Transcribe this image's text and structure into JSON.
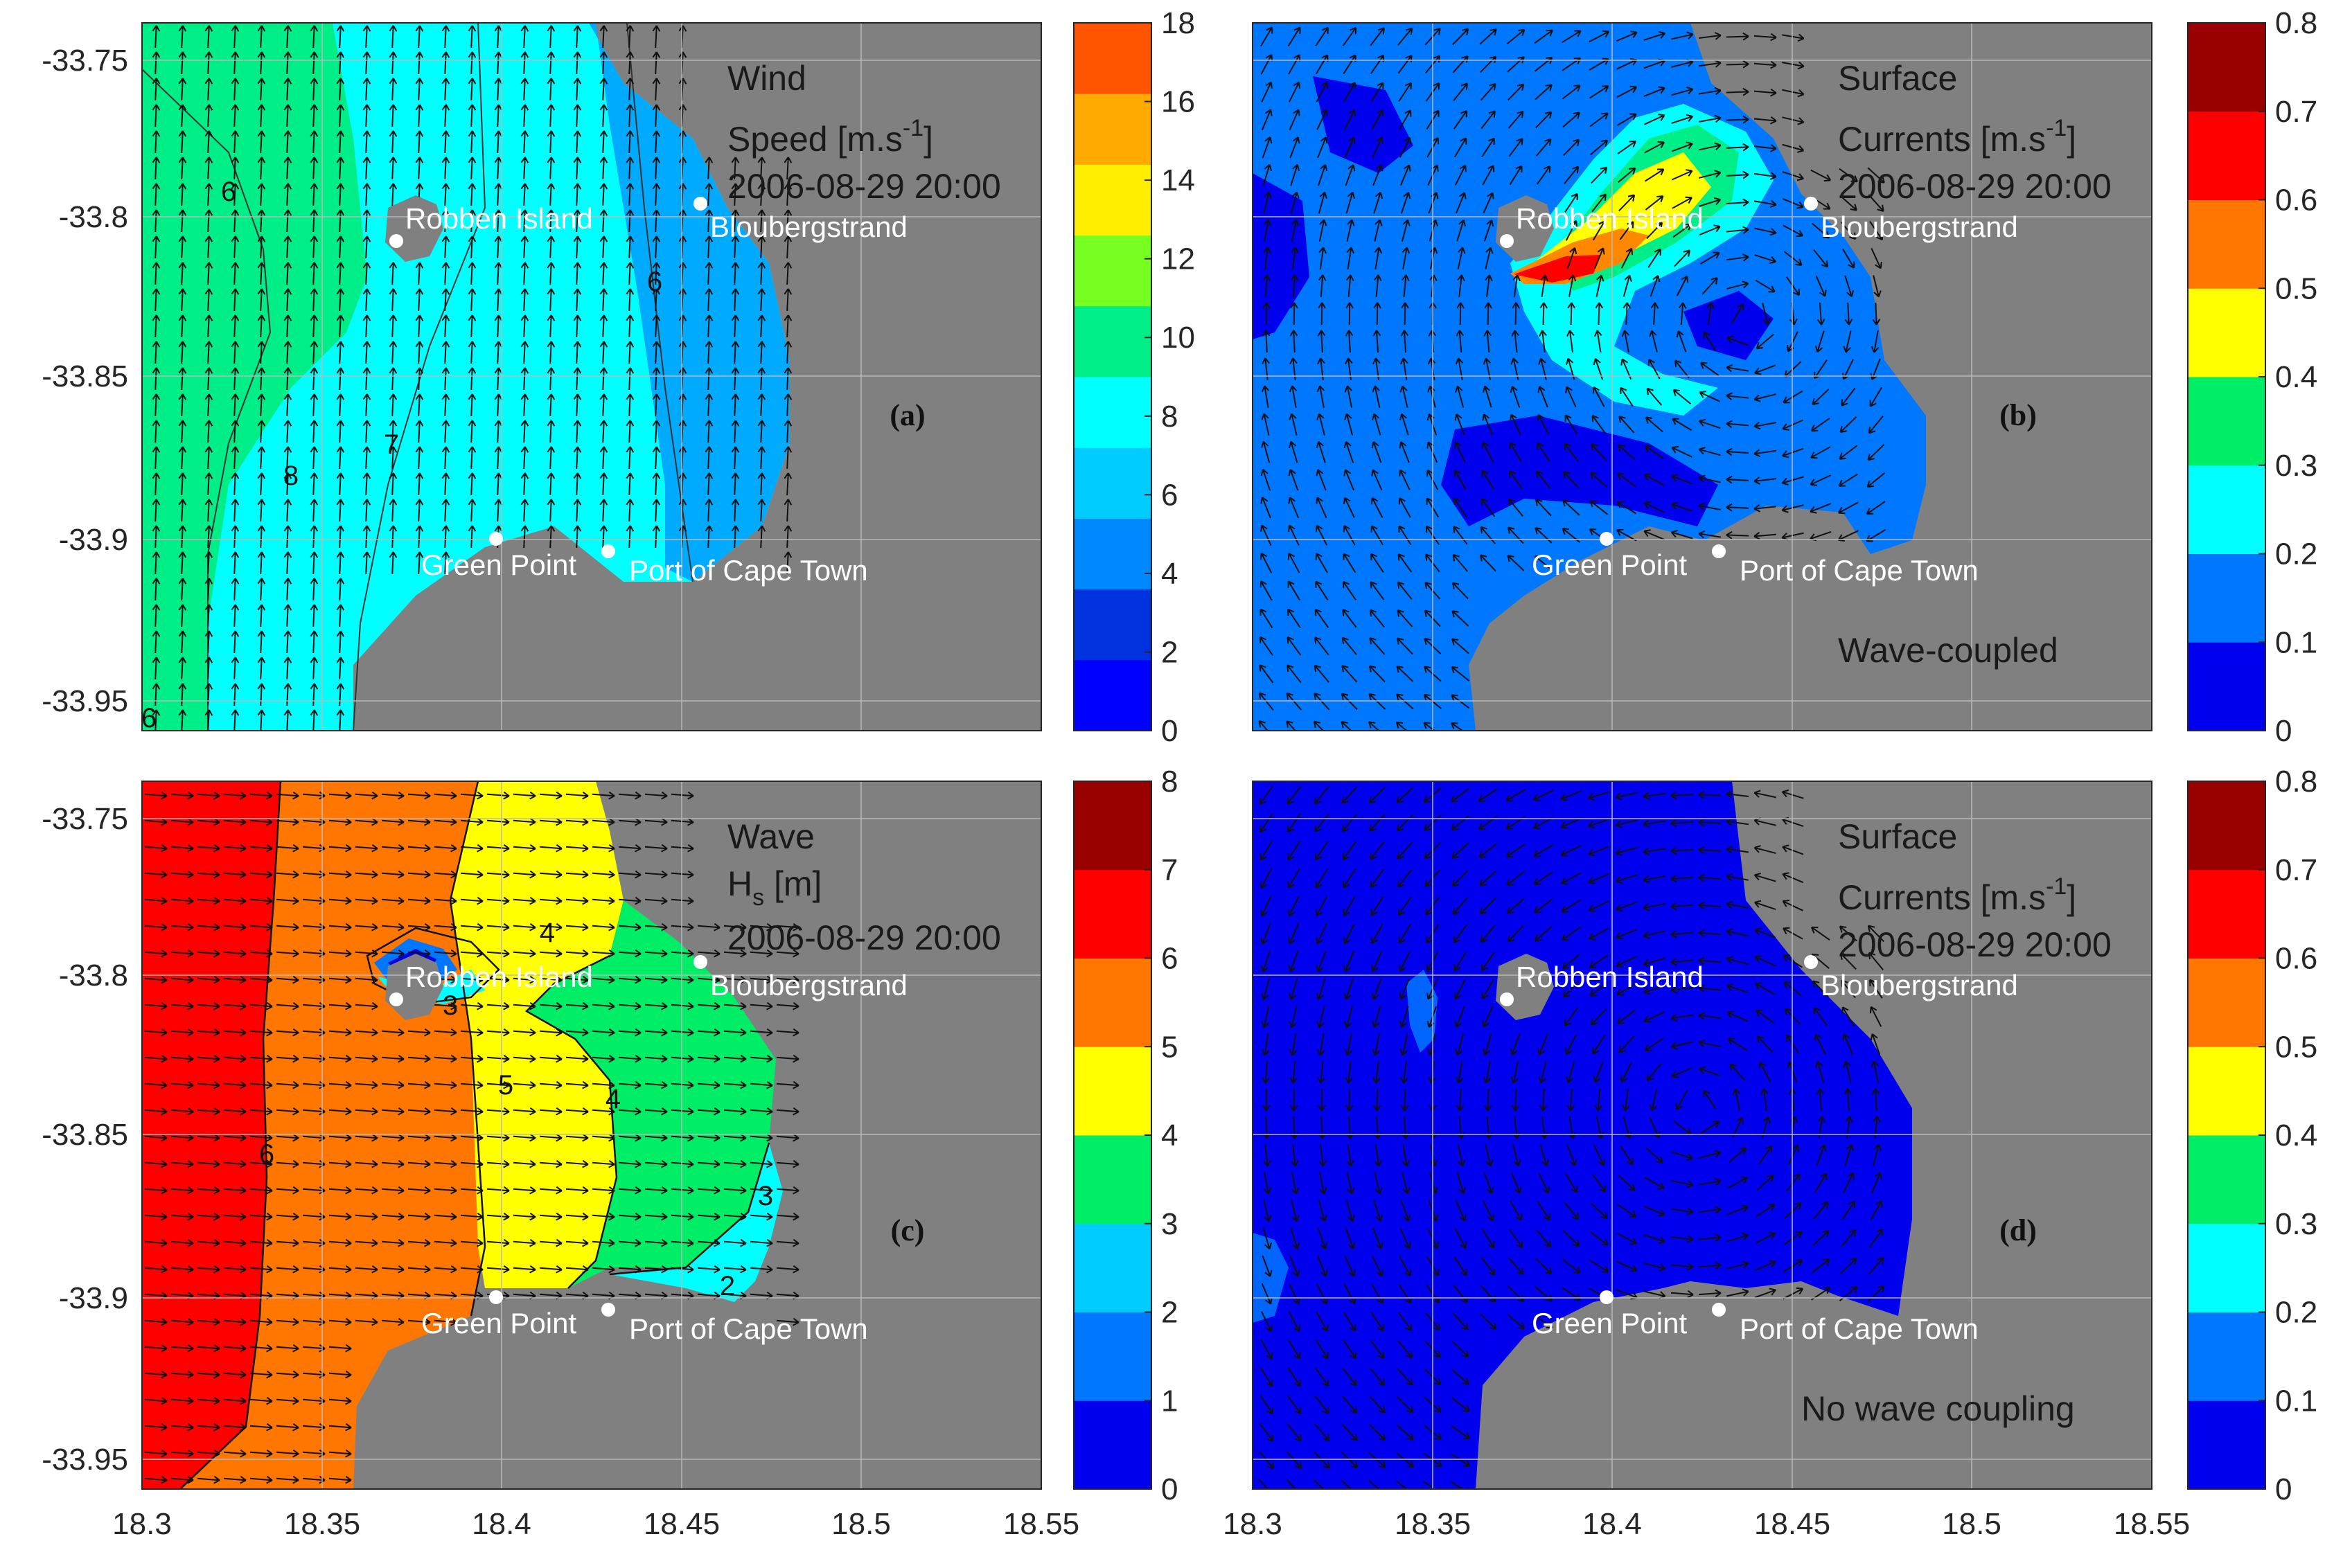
{
  "figure": {
    "x_ticks": [
      "18.3",
      "18.35",
      "18.4",
      "18.45",
      "18.5",
      "18.55"
    ],
    "y_ticks": [
      "-33.75",
      "-33.8",
      "-33.85",
      "-33.9",
      "-33.95"
    ]
  },
  "places": {
    "robben": "Robben Island",
    "blouberg": "Bloubergstrand",
    "green": "Green Point",
    "port": "Port of Cape Town"
  },
  "panels": [
    {
      "id": "a",
      "tag": "(a)",
      "title1": "Wind",
      "title2_base": "Speed [m.s",
      "title2_exp": "-1",
      "title2_end": "]",
      "date": "2006-08-29 20:00",
      "note": "",
      "cbar_ticks": [
        "18",
        "16",
        "14",
        "12",
        "10",
        "8",
        "6",
        "4",
        "2",
        "0"
      ],
      "contour_labels": [
        "6",
        "6",
        "8",
        "7",
        "6"
      ]
    },
    {
      "id": "b",
      "tag": "(b)",
      "title1": "Surface",
      "title2_base": "Currents [m.s",
      "title2_exp": "-1",
      "title2_end": "]",
      "date": "2006-08-29 20:00",
      "note": "Wave-coupled",
      "cbar_ticks": [
        "0.8",
        "0.7",
        "0.6",
        "0.5",
        "0.4",
        "0.3",
        "0.2",
        "0.1",
        "0"
      ],
      "contour_labels": []
    },
    {
      "id": "c",
      "tag": "(c)",
      "title1": "Wave",
      "title2_base": "H",
      "title2_sub": "s",
      "title2_end": " [m]",
      "date": "2006-08-29 20:00",
      "note": "",
      "cbar_ticks": [
        "8",
        "7",
        "6",
        "5",
        "4",
        "3",
        "2",
        "1",
        "0"
      ],
      "contour_labels": [
        "6",
        "5",
        "4",
        "4",
        "3",
        "3",
        "2"
      ]
    },
    {
      "id": "d",
      "tag": "(d)",
      "title1": "Surface",
      "title2_base": "Currents [m.s",
      "title2_exp": "-1",
      "title2_end": "]",
      "date": "2006-08-29 20:00",
      "note": "No wave coupling",
      "cbar_ticks": [
        "0.8",
        "0.7",
        "0.6",
        "0.5",
        "0.4",
        "0.3",
        "0.2",
        "0.1",
        "0"
      ],
      "contour_labels": []
    }
  ],
  "chart_data": [
    {
      "type": "heatmap",
      "panel": "a",
      "title": "Wind Speed [m.s-1] 2006-08-29 20:00",
      "xlim": [
        18.3,
        18.55
      ],
      "ylim": [
        -33.96,
        -33.74
      ],
      "colorbar_range": [
        0,
        18
      ],
      "colorbar_step": 2,
      "contour_levels": [
        6,
        7,
        8,
        9
      ],
      "field_range_approx": [
        4,
        9
      ],
      "arrow_direction": "northward (southerly wind)",
      "grid": true
    },
    {
      "type": "heatmap",
      "panel": "b",
      "title": "Surface Currents [m.s-1] 2006-08-29 20:00",
      "annotation": "Wave-coupled",
      "xlim": [
        18.3,
        18.55
      ],
      "ylim": [
        -33.96,
        -33.74
      ],
      "colorbar_range": [
        0,
        0.8
      ],
      "colorbar_step": 0.1,
      "max_value_approx": 0.65,
      "max_location": [
        18.39,
        -33.82
      ],
      "grid": true
    },
    {
      "type": "heatmap",
      "panel": "c",
      "title": "Wave Hs [m] 2006-08-29 20:00",
      "xlim": [
        18.3,
        18.55
      ],
      "ylim": [
        -33.96,
        -33.74
      ],
      "colorbar_range": [
        0,
        8
      ],
      "colorbar_step": 1,
      "contour_levels": [
        2,
        3,
        4,
        5,
        6
      ],
      "field_range_approx": [
        1,
        6.5
      ],
      "arrow_direction": "eastward",
      "grid": true
    },
    {
      "type": "heatmap",
      "panel": "d",
      "title": "Surface Currents [m.s-1] 2006-08-29 20:00",
      "annotation": "No wave coupling",
      "xlim": [
        18.3,
        18.55
      ],
      "ylim": [
        -33.96,
        -33.74
      ],
      "colorbar_range": [
        0,
        0.8
      ],
      "colorbar_step": 0.1,
      "field_range_approx": [
        0,
        0.15
      ],
      "grid": true
    }
  ],
  "colors": {
    "land": "#808080",
    "jet": [
      "#0000ff",
      "#0066ff",
      "#00aaff",
      "#00ffff",
      "#00ff88",
      "#77ff22",
      "#ffff00",
      "#ffaa00",
      "#ff6600",
      "#ff0000",
      "#990000"
    ]
  }
}
